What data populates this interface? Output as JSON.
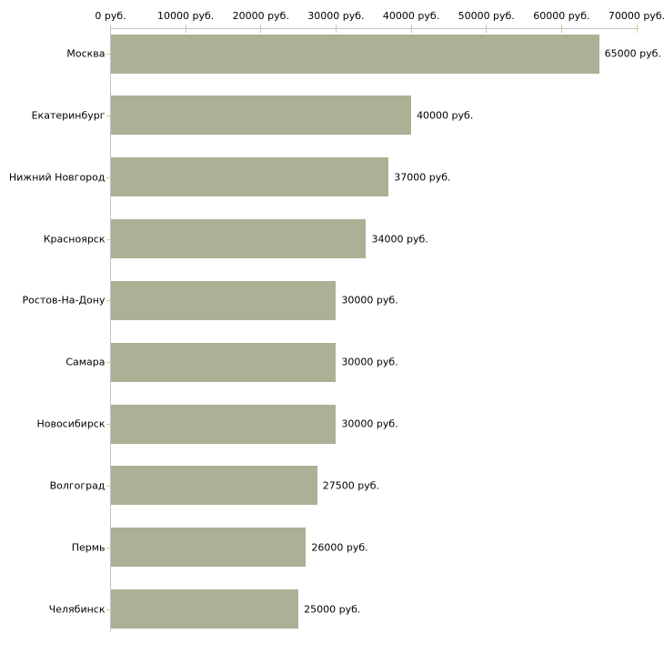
{
  "chart_data": {
    "type": "bar",
    "orientation": "horizontal",
    "categories": [
      "Москва",
      "Екатеринбург",
      "Нижний Новгород",
      "Красноярск",
      "Ростов-На-Дону",
      "Самара",
      "Новосибирск",
      "Волгоград",
      "Пермь",
      "Челябинск"
    ],
    "values": [
      65000,
      40000,
      37000,
      34000,
      30000,
      30000,
      30000,
      27500,
      26000,
      25000
    ],
    "value_labels": [
      "65000 руб.",
      "40000 руб.",
      "37000 руб.",
      "34000 руб.",
      "30000 руб.",
      "30000 руб.",
      "30000 руб.",
      "27500 руб.",
      "26000 руб.",
      "25000 руб."
    ],
    "title": "",
    "xlabel": "",
    "ylabel": "",
    "xlim": [
      0,
      70000
    ],
    "x_ticks": [
      0,
      10000,
      20000,
      30000,
      40000,
      50000,
      60000,
      70000
    ],
    "x_tick_labels": [
      "0 руб.",
      "10000 руб.",
      "20000 руб.",
      "30000 руб.",
      "40000 руб.",
      "50000 руб.",
      "60000 руб.",
      "70000 руб."
    ],
    "unit": "руб.",
    "grid": false,
    "legend": null,
    "axis_position": "top",
    "colors": {
      "bar": "#acb095",
      "axis_line": "#c3c3c3",
      "tick_mark": "#cecca4",
      "text": "#000000",
      "background": "#ffffff"
    }
  }
}
